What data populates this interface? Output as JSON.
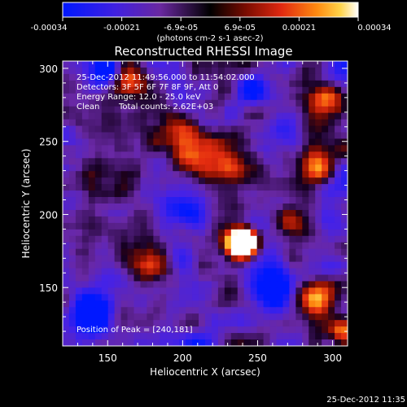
{
  "colorbar": {
    "tick_labels": [
      "-0.00034",
      "-0.00021",
      "-6.9e-05",
      "6.9e-05",
      "0.00021",
      "0.00034"
    ],
    "range": [
      -0.00034,
      0.00034
    ],
    "unit_label": "(photons cm-2 s-1 asec-2)",
    "colors": [
      "#0018ff",
      "#5a28d8",
      "#6a28a0",
      "#000000",
      "#8a1000",
      "#e83010",
      "#ff8000",
      "#ffd040",
      "#ffffff"
    ]
  },
  "chart_data": {
    "type": "heatmap",
    "title": "Reconstructed RHESSI Image",
    "xlabel": "Heliocentric X (arcsec)",
    "ylabel": "Heliocentric Y (arcsec)",
    "xlim": [
      120,
      310
    ],
    "ylim": [
      110,
      305
    ],
    "x_ticks": [
      150,
      200,
      250,
      300
    ],
    "y_ticks": [
      150,
      200,
      250,
      300
    ],
    "peak": [
      240,
      181
    ],
    "grid": false,
    "annotations": {
      "time_range": "25-Dec-2012 11:49:56.000 to 11:54:02.000",
      "detectors": "Detectors: 3F 5F 6F 7F 8F 9F, Att 0",
      "energy": "Energy Range: 12.0 - 25.0 keV",
      "method": "Clean",
      "counts": "Total counts: 2.62E+03",
      "peak_label": "Position of Peak = [240,181]"
    }
  },
  "footer": {
    "timestamp": "25-Dec-2012 11:35"
  }
}
